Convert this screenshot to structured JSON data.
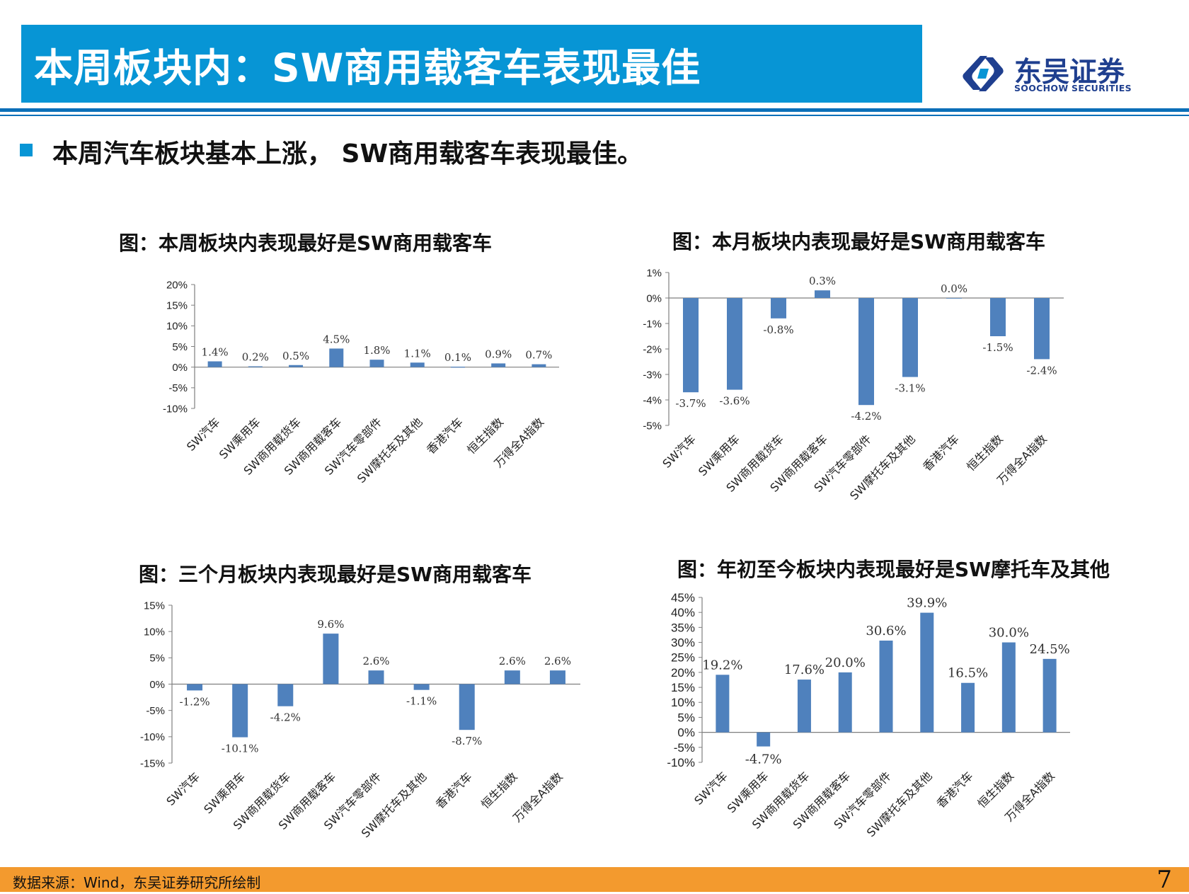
{
  "header": {
    "title": "本周板块内：SW商用载客车表现最佳",
    "logo_name": "东吴证券",
    "logo_en": "SOOCHOW SECURITIES"
  },
  "bullet": "本周汽车板块基本上涨， SW商用载客车表现最佳。",
  "colors": {
    "bar": "#4f81bd",
    "title_bar": "#0795d5",
    "footer": "#f39a2e"
  },
  "chart_data": [
    {
      "type": "bar",
      "title": "图：本周板块内表现最好是SW商用载客车",
      "categories": [
        "SW汽车",
        "SW乘用车",
        "SW商用载货车",
        "SW商用载客车",
        "SW汽车零部件",
        "SW摩托车及其他",
        "香港汽车",
        "恒生指数",
        "万得全A指数"
      ],
      "values": [
        1.4,
        0.2,
        0.5,
        4.5,
        1.8,
        1.1,
        0.1,
        0.9,
        0.7
      ],
      "value_labels": [
        "1.4%",
        "0.2%",
        "0.5%",
        "4.5%",
        "1.8%",
        "1.1%",
        "0.1%",
        "0.9%",
        "0.7%"
      ],
      "yticks": [
        "20%",
        "15%",
        "10%",
        "5%",
        "0%",
        "-5%",
        "-10%"
      ],
      "ylim": [
        -10,
        20
      ]
    },
    {
      "type": "bar",
      "title": "图：本月板块内表现最好是SW商用载客车",
      "categories": [
        "SW汽车",
        "SW乘用车",
        "SW商用载货车",
        "SW商用载客车",
        "SW汽车零部件",
        "SW摩托车及其他",
        "香港汽车",
        "恒生指数",
        "万得全A指数"
      ],
      "values": [
        -3.7,
        -3.6,
        -0.8,
        0.3,
        -4.2,
        -3.1,
        0.0,
        -1.5,
        -2.4
      ],
      "value_labels": [
        "-3.7%",
        "-3.6%",
        "-0.8%",
        "0.3%",
        "-4.2%",
        "-3.1%",
        "0.0%",
        "-1.5%",
        "-2.4%"
      ],
      "yticks": [
        "1%",
        "0%",
        "-1%",
        "-2%",
        "-3%",
        "-4%",
        "-5%"
      ],
      "ylim": [
        -5,
        1
      ]
    },
    {
      "type": "bar",
      "title": "图：三个月板块内表现最好是SW商用载客车",
      "categories": [
        "SW汽车",
        "SW乘用车",
        "SW商用载货车",
        "SW商用载客车",
        "SW汽车零部件",
        "SW摩托车及其他",
        "香港汽车",
        "恒生指数",
        "万得全A指数"
      ],
      "values": [
        -1.2,
        -10.1,
        -4.2,
        9.6,
        2.6,
        -1.1,
        -8.7,
        2.6,
        2.6
      ],
      "value_labels": [
        "-1.2%",
        "-10.1%",
        "-4.2%",
        "9.6%",
        "2.6%",
        "-1.1%",
        "-8.7%",
        "2.6%",
        "2.6%"
      ],
      "yticks": [
        "15%",
        "10%",
        "5%",
        "0%",
        "-5%",
        "-10%",
        "-15%"
      ],
      "ylim": [
        -15,
        15
      ]
    },
    {
      "type": "bar",
      "title": "图：年初至今板块内表现最好是SW摩托车及其他",
      "categories": [
        "SW汽车",
        "SW乘用车",
        "SW商用载货车",
        "SW商用载客车",
        "SW汽车零部件",
        "SW摩托车及其他",
        "香港汽车",
        "恒生指数",
        "万得全A指数"
      ],
      "values": [
        19.2,
        -4.7,
        17.6,
        20.0,
        30.6,
        39.9,
        16.5,
        30.0,
        24.5
      ],
      "value_labels": [
        "19.2%",
        "-4.7%",
        "17.6%",
        "20.0%",
        "30.6%",
        "39.9%",
        "16.5%",
        "30.0%",
        "24.5%"
      ],
      "yticks": [
        "45%",
        "40%",
        "35%",
        "30%",
        "25%",
        "20%",
        "15%",
        "10%",
        "5%",
        "0%",
        "-5%",
        "-10%"
      ],
      "ylim": [
        -10,
        45
      ]
    }
  ],
  "footer": {
    "source": "数据来源：Wind，东吴证券研究所绘制",
    "page": "7"
  }
}
